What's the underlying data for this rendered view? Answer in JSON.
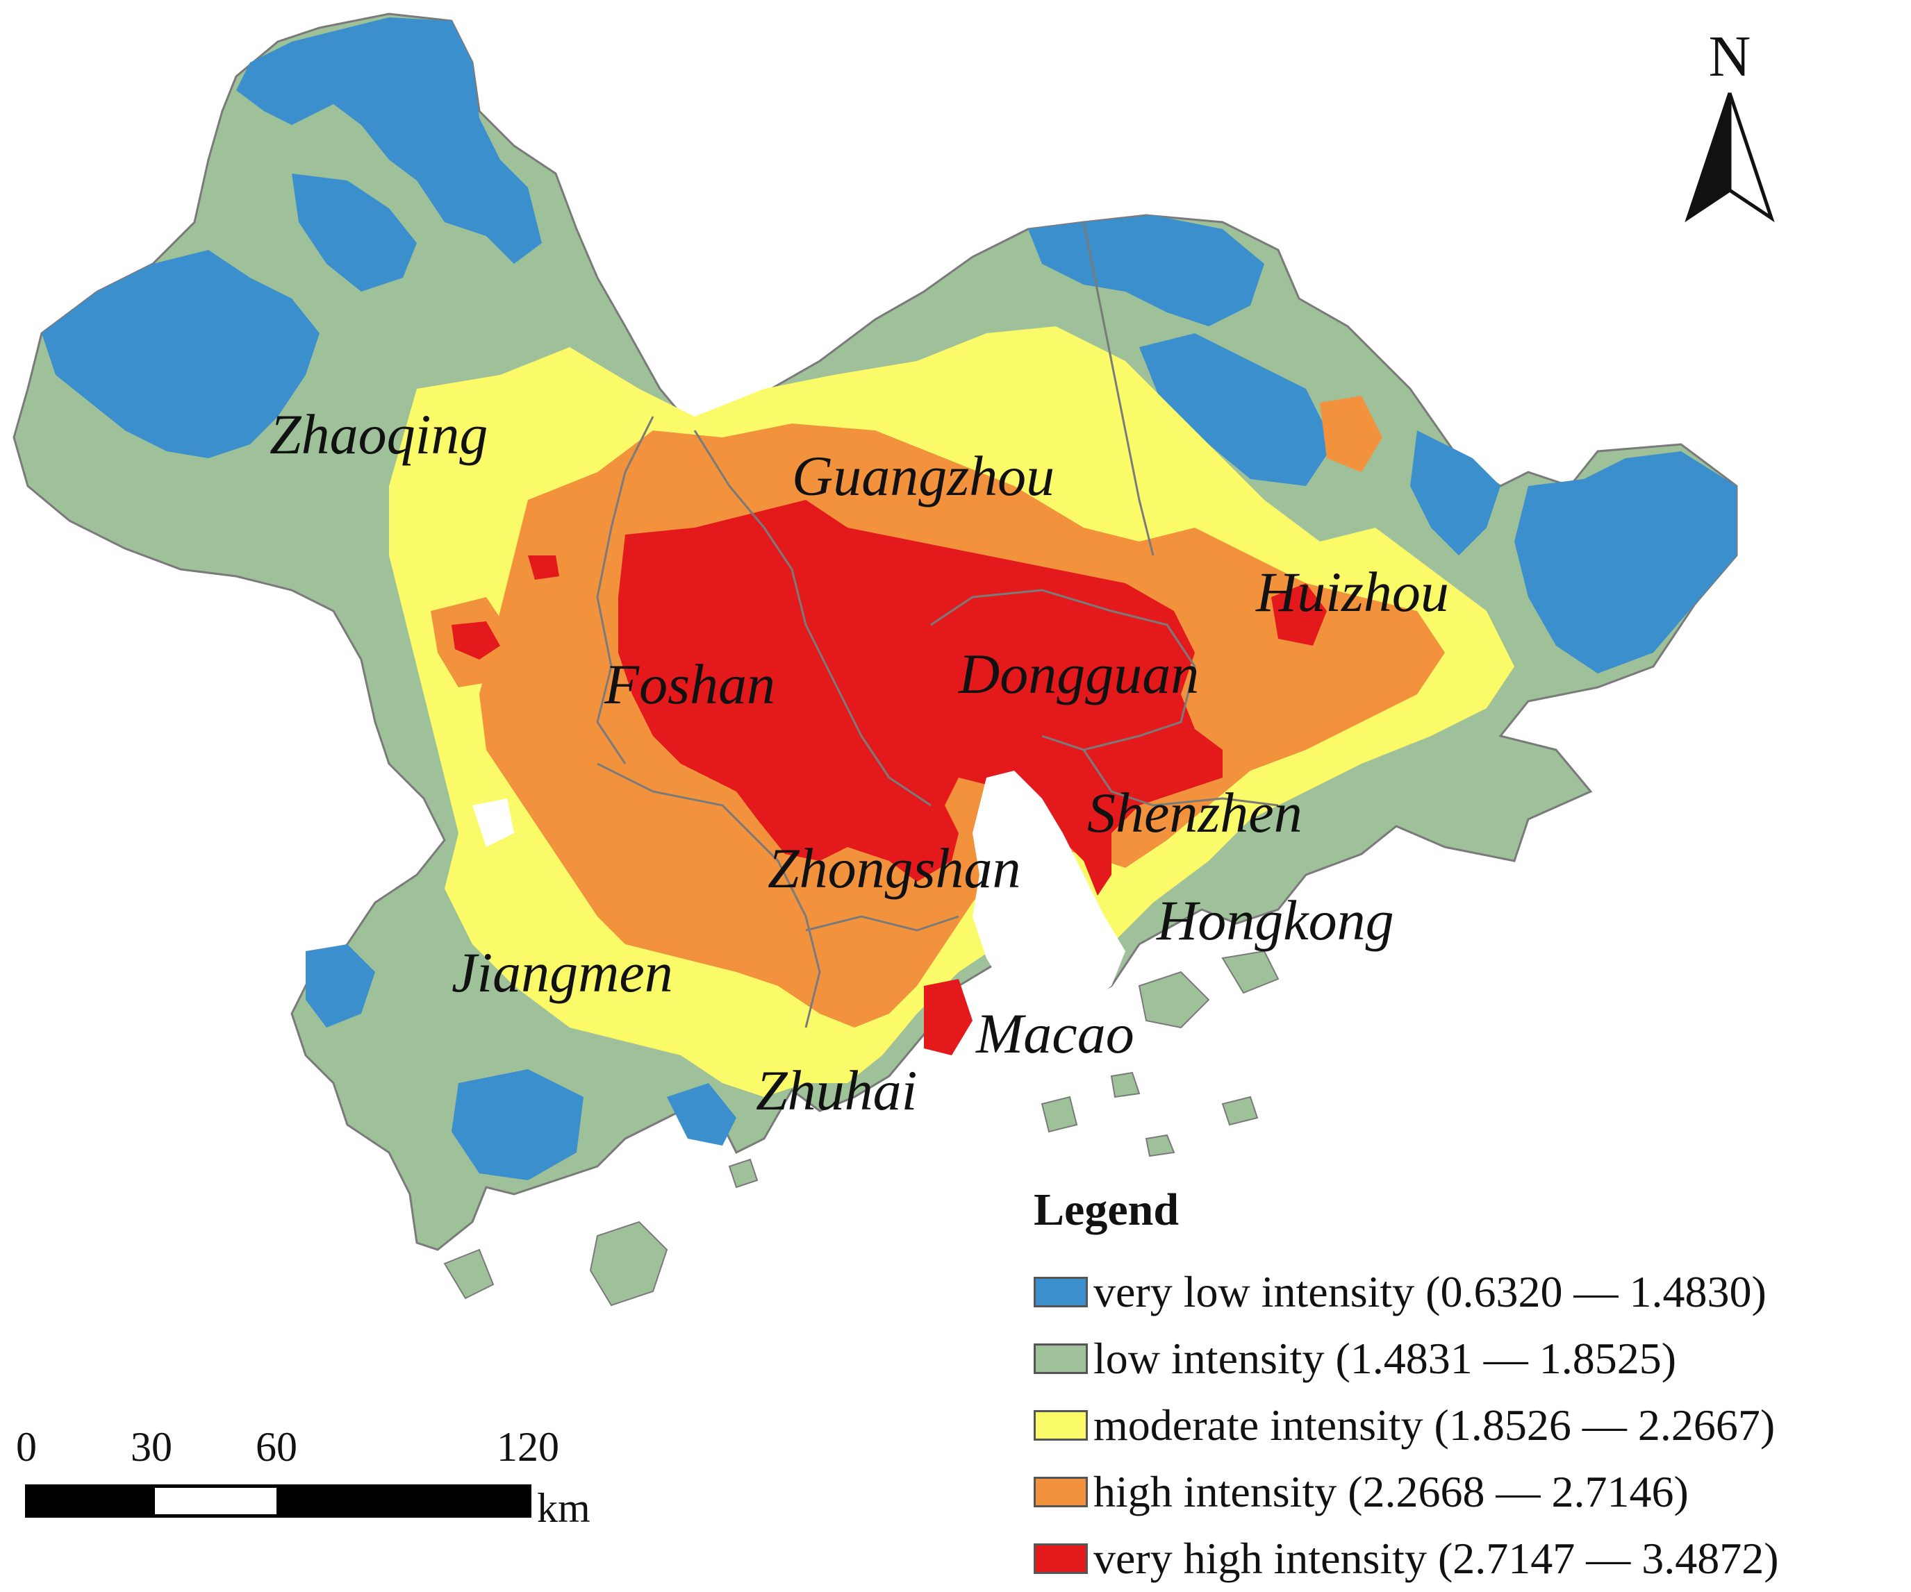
{
  "map": {
    "cities": [
      {
        "key": "zhaoqing",
        "label": "Zhaoqing"
      },
      {
        "key": "guangzhou",
        "label": "Guangzhou"
      },
      {
        "key": "huizhou",
        "label": "Huizhou"
      },
      {
        "key": "foshan",
        "label": "Foshan"
      },
      {
        "key": "dongguan",
        "label": "Dongguan"
      },
      {
        "key": "shenzhen",
        "label": "Shenzhen"
      },
      {
        "key": "zhongshan",
        "label": "Zhongshan"
      },
      {
        "key": "hongkong",
        "label": "Hongkong"
      },
      {
        "key": "jiangmen",
        "label": "Jiangmen"
      },
      {
        "key": "macao",
        "label": "Macao"
      },
      {
        "key": "zhuhai",
        "label": "Zhuhai"
      }
    ],
    "colors": {
      "very_low": "#3a8fcc",
      "low": "#9fc19a",
      "moderate": "#fbfb6a",
      "high": "#f2923d",
      "very_high": "#e4191c"
    }
  },
  "legend": {
    "title": "Legend",
    "items": [
      {
        "label": "very low intensity (0.6320 — 1.4830)",
        "color": "#3a8fcc"
      },
      {
        "label": "low intensity (1.4831 — 1.8525)",
        "color": "#9fc19a"
      },
      {
        "label": "moderate intensity (1.8526 — 2.2667)",
        "color": "#fbfb6a"
      },
      {
        "label": "high intensity (2.2668 — 2.7146)",
        "color": "#f2923d"
      },
      {
        "label": "very high intensity (2.7147 — 3.4872)",
        "color": "#e4191c"
      }
    ]
  },
  "north_arrow": {
    "letter": "N",
    "icon": "north-arrow-icon"
  },
  "scale_bar": {
    "ticks": [
      "0",
      "30",
      "60",
      "120"
    ],
    "unit": "km"
  }
}
